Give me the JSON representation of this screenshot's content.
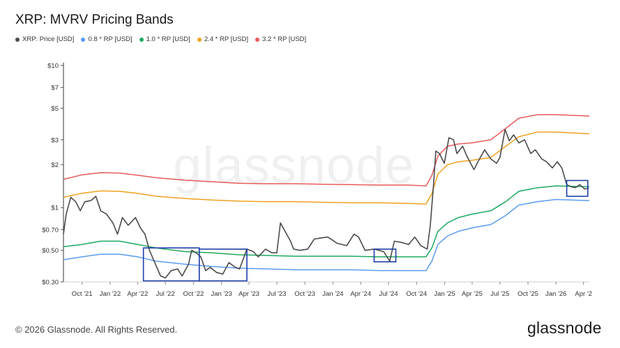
{
  "header": {
    "title": "XRP: MVRV Pricing Bands"
  },
  "legend": [
    {
      "label": "XRP: Price [USD]",
      "color": "#4a4a4a"
    },
    {
      "label": "0.8 * RP [USD]",
      "color": "#5b9bf0"
    },
    {
      "label": "1.0 * RP [USD]",
      "color": "#1fa862"
    },
    {
      "label": "2.4 * RP [USD]",
      "color": "#f0a020"
    },
    {
      "label": "3.2 * RP [USD]",
      "color": "#e85a5a"
    }
  ],
  "footer": {
    "copyright": "© 2026 Glassnode. All Rights Reserved.",
    "brand": "glassnode",
    "watermark": "glassnode"
  },
  "chart_data": {
    "type": "line",
    "y_scale": "log",
    "ylim": [
      0.3,
      10
    ],
    "y_ticks": [
      {
        "value": 10,
        "label": "$10"
      },
      {
        "value": 7,
        "label": "$7"
      },
      {
        "value": 5,
        "label": "$5"
      },
      {
        "value": 3,
        "label": "$3"
      },
      {
        "value": 2,
        "label": "$2"
      },
      {
        "value": 1,
        "label": "$1"
      },
      {
        "value": 0.7,
        "label": "$0.70"
      },
      {
        "value": 0.5,
        "label": "$0.50"
      },
      {
        "value": 0.3,
        "label": "$0.30"
      }
    ],
    "xlim": [
      "2021-08-01",
      "2026-04-20"
    ],
    "x_ticks": [
      {
        "date": "2021-10-01",
        "label": "Oct '21"
      },
      {
        "date": "2022-01-01",
        "label": "Jan '22"
      },
      {
        "date": "2022-04-01",
        "label": "Apr '22"
      },
      {
        "date": "2022-07-01",
        "label": "Jul '22"
      },
      {
        "date": "2022-10-01",
        "label": "Oct '22"
      },
      {
        "date": "2023-01-01",
        "label": "Jan '23"
      },
      {
        "date": "2023-04-01",
        "label": "Apr '23"
      },
      {
        "date": "2023-07-01",
        "label": "Jul '23"
      },
      {
        "date": "2023-10-01",
        "label": "Oct '23"
      },
      {
        "date": "2024-01-01",
        "label": "Jan '24"
      },
      {
        "date": "2024-04-01",
        "label": "Apr '24"
      },
      {
        "date": "2024-07-01",
        "label": "Jul '24"
      },
      {
        "date": "2024-10-01",
        "label": "Oct '24"
      },
      {
        "date": "2025-01-01",
        "label": "Jan '25"
      },
      {
        "date": "2025-04-01",
        "label": "Apr '25"
      },
      {
        "date": "2025-07-01",
        "label": "Jul '25"
      },
      {
        "date": "2025-10-01",
        "label": "Oct '25"
      },
      {
        "date": "2026-01-01",
        "label": "Jan '26"
      },
      {
        "date": "2026-04-01",
        "label": "Apr '2"
      }
    ],
    "series": [
      {
        "name": "3.2 * RP [USD]",
        "color": "#e85a5a",
        "points": [
          [
            "2021-08-01",
            1.58
          ],
          [
            "2021-10-01",
            1.7
          ],
          [
            "2021-12-01",
            1.76
          ],
          [
            "2022-02-01",
            1.75
          ],
          [
            "2022-04-01",
            1.69
          ],
          [
            "2022-06-01",
            1.62
          ],
          [
            "2022-09-01",
            1.56
          ],
          [
            "2022-12-01",
            1.52
          ],
          [
            "2023-03-01",
            1.48
          ],
          [
            "2023-06-01",
            1.47
          ],
          [
            "2023-09-01",
            1.47
          ],
          [
            "2023-12-01",
            1.46
          ],
          [
            "2024-03-01",
            1.45
          ],
          [
            "2024-06-01",
            1.44
          ],
          [
            "2024-09-01",
            1.44
          ],
          [
            "2024-11-01",
            1.42
          ],
          [
            "2024-11-20",
            1.68
          ],
          [
            "2024-12-10",
            2.3
          ],
          [
            "2025-01-10",
            2.7
          ],
          [
            "2025-02-15",
            2.8
          ],
          [
            "2025-04-01",
            2.85
          ],
          [
            "2025-06-01",
            3.0
          ],
          [
            "2025-07-20",
            3.6
          ],
          [
            "2025-09-01",
            4.25
          ],
          [
            "2025-11-01",
            4.5
          ],
          [
            "2026-01-01",
            4.5
          ],
          [
            "2026-04-20",
            4.4
          ]
        ]
      },
      {
        "name": "2.4 * RP [USD]",
        "color": "#f0a020",
        "points": [
          [
            "2021-08-01",
            1.18
          ],
          [
            "2021-10-01",
            1.26
          ],
          [
            "2021-12-01",
            1.31
          ],
          [
            "2022-02-01",
            1.3
          ],
          [
            "2022-04-01",
            1.26
          ],
          [
            "2022-06-01",
            1.2
          ],
          [
            "2022-09-01",
            1.16
          ],
          [
            "2022-12-01",
            1.13
          ],
          [
            "2023-03-01",
            1.11
          ],
          [
            "2023-06-01",
            1.1
          ],
          [
            "2023-09-01",
            1.1
          ],
          [
            "2023-12-01",
            1.09
          ],
          [
            "2024-03-01",
            1.08
          ],
          [
            "2024-06-01",
            1.08
          ],
          [
            "2024-09-01",
            1.07
          ],
          [
            "2024-11-01",
            1.06
          ],
          [
            "2024-11-20",
            1.25
          ],
          [
            "2024-12-10",
            1.72
          ],
          [
            "2025-01-10",
            2.0
          ],
          [
            "2025-02-15",
            2.1
          ],
          [
            "2025-04-01",
            2.15
          ],
          [
            "2025-06-01",
            2.25
          ],
          [
            "2025-07-20",
            2.7
          ],
          [
            "2025-09-01",
            3.15
          ],
          [
            "2025-11-01",
            3.4
          ],
          [
            "2026-01-01",
            3.4
          ],
          [
            "2026-04-20",
            3.3
          ]
        ]
      },
      {
        "name": "1.0 * RP [USD]",
        "color": "#1fa862",
        "points": [
          [
            "2021-08-01",
            0.53
          ],
          [
            "2021-10-01",
            0.55
          ],
          [
            "2021-12-01",
            0.58
          ],
          [
            "2022-02-01",
            0.58
          ],
          [
            "2022-04-01",
            0.55
          ],
          [
            "2022-06-01",
            0.52
          ],
          [
            "2022-09-01",
            0.49
          ],
          [
            "2022-12-01",
            0.48
          ],
          [
            "2023-03-01",
            0.465
          ],
          [
            "2023-06-01",
            0.46
          ],
          [
            "2023-09-01",
            0.455
          ],
          [
            "2023-12-01",
            0.455
          ],
          [
            "2024-03-01",
            0.455
          ],
          [
            "2024-06-01",
            0.45
          ],
          [
            "2024-09-01",
            0.45
          ],
          [
            "2024-11-01",
            0.45
          ],
          [
            "2024-11-20",
            0.52
          ],
          [
            "2024-12-10",
            0.68
          ],
          [
            "2025-01-10",
            0.78
          ],
          [
            "2025-02-15",
            0.85
          ],
          [
            "2025-04-01",
            0.9
          ],
          [
            "2025-06-01",
            0.95
          ],
          [
            "2025-07-20",
            1.1
          ],
          [
            "2025-09-01",
            1.3
          ],
          [
            "2025-11-01",
            1.38
          ],
          [
            "2026-01-01",
            1.42
          ],
          [
            "2026-04-20",
            1.4
          ]
        ]
      },
      {
        "name": "0.8 * RP [USD]",
        "color": "#5b9bf0",
        "points": [
          [
            "2021-08-01",
            0.43
          ],
          [
            "2021-10-01",
            0.45
          ],
          [
            "2021-12-01",
            0.47
          ],
          [
            "2022-02-01",
            0.47
          ],
          [
            "2022-04-01",
            0.45
          ],
          [
            "2022-06-01",
            0.42
          ],
          [
            "2022-09-01",
            0.4
          ],
          [
            "2022-12-01",
            0.385
          ],
          [
            "2023-03-01",
            0.375
          ],
          [
            "2023-06-01",
            0.37
          ],
          [
            "2023-09-01",
            0.365
          ],
          [
            "2023-12-01",
            0.365
          ],
          [
            "2024-03-01",
            0.365
          ],
          [
            "2024-06-01",
            0.36
          ],
          [
            "2024-09-01",
            0.36
          ],
          [
            "2024-11-01",
            0.36
          ],
          [
            "2024-11-20",
            0.42
          ],
          [
            "2024-12-10",
            0.55
          ],
          [
            "2025-01-10",
            0.63
          ],
          [
            "2025-02-15",
            0.68
          ],
          [
            "2025-04-01",
            0.72
          ],
          [
            "2025-06-01",
            0.76
          ],
          [
            "2025-07-20",
            0.88
          ],
          [
            "2025-09-01",
            1.04
          ],
          [
            "2025-11-01",
            1.1
          ],
          [
            "2026-01-01",
            1.14
          ],
          [
            "2026-04-20",
            1.12
          ]
        ]
      },
      {
        "name": "XRP: Price [USD]",
        "color": "#4a4a4a",
        "points": [
          [
            "2021-08-01",
            0.65
          ],
          [
            "2021-08-10",
            0.9
          ],
          [
            "2021-08-25",
            1.18
          ],
          [
            "2021-09-10",
            1.1
          ],
          [
            "2021-09-25",
            0.95
          ],
          [
            "2021-10-10",
            1.1
          ],
          [
            "2021-10-30",
            1.12
          ],
          [
            "2021-11-15",
            1.2
          ],
          [
            "2021-12-01",
            0.95
          ],
          [
            "2021-12-20",
            0.9
          ],
          [
            "2022-01-10",
            0.78
          ],
          [
            "2022-01-25",
            0.65
          ],
          [
            "2022-02-10",
            0.85
          ],
          [
            "2022-03-01",
            0.75
          ],
          [
            "2022-03-25",
            0.85
          ],
          [
            "2022-04-10",
            0.72
          ],
          [
            "2022-04-25",
            0.65
          ],
          [
            "2022-05-10",
            0.5
          ],
          [
            "2022-05-25",
            0.42
          ],
          [
            "2022-06-15",
            0.33
          ],
          [
            "2022-07-01",
            0.32
          ],
          [
            "2022-07-20",
            0.36
          ],
          [
            "2022-08-10",
            0.37
          ],
          [
            "2022-08-25",
            0.33
          ],
          [
            "2022-09-15",
            0.4
          ],
          [
            "2022-09-25",
            0.5
          ],
          [
            "2022-10-10",
            0.48
          ],
          [
            "2022-10-25",
            0.45
          ],
          [
            "2022-11-10",
            0.36
          ],
          [
            "2022-11-25",
            0.38
          ],
          [
            "2022-12-15",
            0.35
          ],
          [
            "2023-01-05",
            0.34
          ],
          [
            "2023-01-25",
            0.41
          ],
          [
            "2023-02-15",
            0.38
          ],
          [
            "2023-03-01",
            0.37
          ],
          [
            "2023-03-25",
            0.51
          ],
          [
            "2023-04-15",
            0.49
          ],
          [
            "2023-05-01",
            0.45
          ],
          [
            "2023-05-25",
            0.51
          ],
          [
            "2023-06-15",
            0.48
          ],
          [
            "2023-07-01",
            0.48
          ],
          [
            "2023-07-13",
            0.78
          ],
          [
            "2023-07-25",
            0.7
          ],
          [
            "2023-08-15",
            0.58
          ],
          [
            "2023-08-25",
            0.51
          ],
          [
            "2023-09-15",
            0.5
          ],
          [
            "2023-10-10",
            0.51
          ],
          [
            "2023-11-01",
            0.6
          ],
          [
            "2023-11-20",
            0.61
          ],
          [
            "2023-12-15",
            0.62
          ],
          [
            "2024-01-15",
            0.56
          ],
          [
            "2024-02-15",
            0.54
          ],
          [
            "2024-03-10",
            0.65
          ],
          [
            "2024-03-25",
            0.62
          ],
          [
            "2024-04-15",
            0.5
          ],
          [
            "2024-05-15",
            0.51
          ],
          [
            "2024-06-15",
            0.49
          ],
          [
            "2024-07-05",
            0.42
          ],
          [
            "2024-07-20",
            0.58
          ],
          [
            "2024-08-10",
            0.57
          ],
          [
            "2024-09-05",
            0.55
          ],
          [
            "2024-09-25",
            0.62
          ],
          [
            "2024-10-15",
            0.54
          ],
          [
            "2024-11-05",
            0.51
          ],
          [
            "2024-11-15",
            0.75
          ],
          [
            "2024-11-25",
            1.4
          ],
          [
            "2024-12-03",
            2.5
          ],
          [
            "2024-12-15",
            2.4
          ],
          [
            "2024-12-31",
            2.05
          ],
          [
            "2025-01-15",
            3.1
          ],
          [
            "2025-01-30",
            3.0
          ],
          [
            "2025-02-10",
            2.4
          ],
          [
            "2025-03-01",
            2.7
          ],
          [
            "2025-03-15",
            2.3
          ],
          [
            "2025-04-07",
            1.85
          ],
          [
            "2025-04-20",
            2.1
          ],
          [
            "2025-05-12",
            2.55
          ],
          [
            "2025-06-01",
            2.2
          ],
          [
            "2025-06-20",
            2.05
          ],
          [
            "2025-07-01",
            2.25
          ],
          [
            "2025-07-18",
            3.55
          ],
          [
            "2025-08-01",
            2.95
          ],
          [
            "2025-08-15",
            3.25
          ],
          [
            "2025-09-01",
            2.85
          ],
          [
            "2025-09-20",
            3.0
          ],
          [
            "2025-10-10",
            2.4
          ],
          [
            "2025-10-25",
            2.55
          ],
          [
            "2025-11-15",
            2.2
          ],
          [
            "2025-12-01",
            2.1
          ],
          [
            "2025-12-20",
            1.9
          ],
          [
            "2026-01-05",
            2.1
          ],
          [
            "2026-01-20",
            1.9
          ],
          [
            "2026-02-05",
            1.45
          ],
          [
            "2026-02-20",
            1.4
          ],
          [
            "2026-03-05",
            1.38
          ],
          [
            "2026-03-20",
            1.45
          ],
          [
            "2026-04-05",
            1.35
          ],
          [
            "2026-04-18",
            1.37
          ]
        ]
      }
    ],
    "highlight_boxes": [
      {
        "x0": "2022-04-20",
        "x1": "2022-10-20",
        "y0": 0.305,
        "y1": 0.52
      },
      {
        "x0": "2022-10-20",
        "x1": "2023-03-25",
        "y0": 0.305,
        "y1": 0.51
      },
      {
        "x0": "2024-05-15",
        "x1": "2024-07-25",
        "y0": 0.415,
        "y1": 0.51
      },
      {
        "x0": "2026-02-05",
        "x1": "2026-04-15",
        "y0": 1.2,
        "y1": 1.55
      }
    ],
    "grid": false,
    "legend_position": "top-left"
  }
}
